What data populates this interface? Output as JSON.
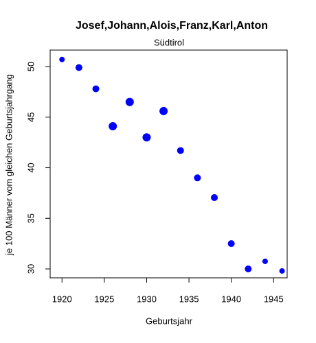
{
  "chart_data": {
    "type": "scatter",
    "title": "Josef,Johann,Alois,Franz,Karl,Anton",
    "subtitle": "Südtirol",
    "x_label": "Geburtsjahr",
    "y_label": "je 100 Männer vom gleichen Geburtsjahrgang",
    "series": [
      {
        "color": "#0000ff",
        "x": [
          1920,
          1922,
          1924,
          1926,
          1928,
          1930,
          1932,
          1934,
          1936,
          1938,
          1940,
          1942,
          1944,
          1946
        ],
        "values": [
          50.7,
          49.9,
          47.8,
          44.1,
          46.5,
          43.0,
          45.6,
          41.7,
          39.0,
          37.05,
          32.5,
          30.0,
          30.75,
          29.8
        ],
        "sizes": [
          0.8,
          1.0,
          1.0,
          1.2,
          1.2,
          1.2,
          1.2,
          1.0,
          1.0,
          1.0,
          1.0,
          1.0,
          0.8,
          0.8
        ]
      }
    ],
    "xlim": [
      1918.6,
      1946.6
    ],
    "xticks": [
      1920,
      1925,
      1930,
      1935,
      1940,
      1945
    ],
    "ylim": [
      29.12,
      51.63
    ],
    "yticks": [
      30,
      35,
      40,
      45,
      50
    ]
  }
}
